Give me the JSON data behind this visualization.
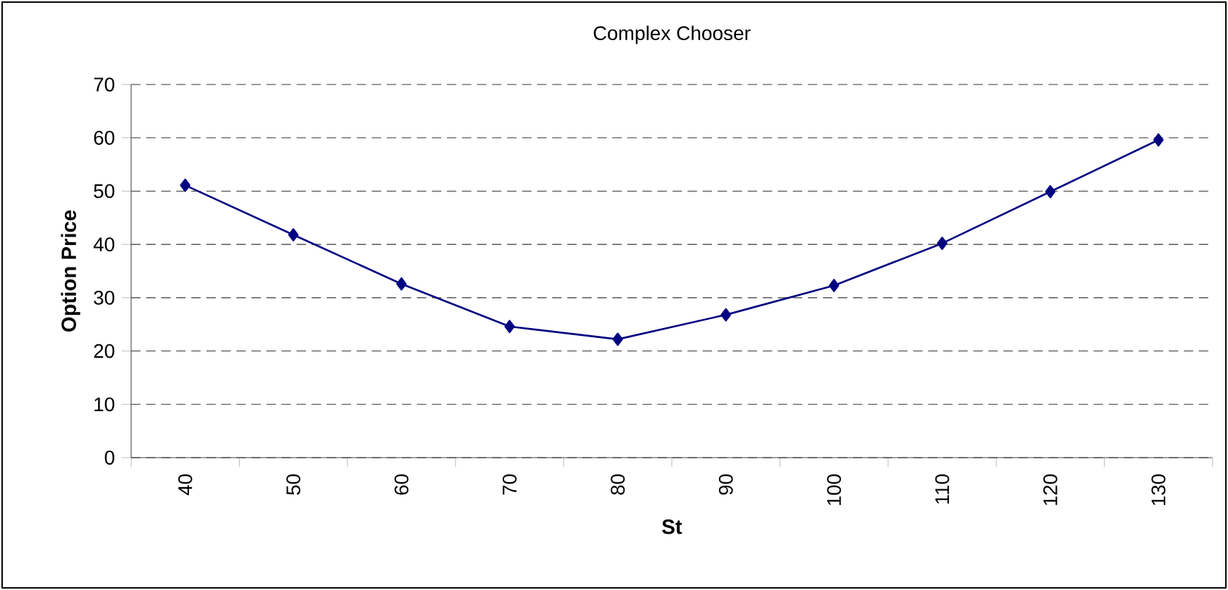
{
  "chart_data": {
    "type": "line",
    "title": "Complex Chooser",
    "xlabel": "St",
    "ylabel": "Option Price",
    "categories": [
      "40",
      "50",
      "60",
      "70",
      "80",
      "90",
      "100",
      "110",
      "120",
      "130"
    ],
    "series": [
      {
        "color": "#000080",
        "values": [
          51.1,
          41.8,
          32.6,
          24.6,
          22.2,
          26.8,
          32.3,
          40.2,
          49.9,
          59.6
        ]
      }
    ],
    "ylim": [
      0,
      70
    ],
    "yticks": [
      0,
      10,
      20,
      30,
      40,
      50,
      60,
      70
    ],
    "grid": "y",
    "marker": "diamond",
    "line_style": "solid"
  }
}
